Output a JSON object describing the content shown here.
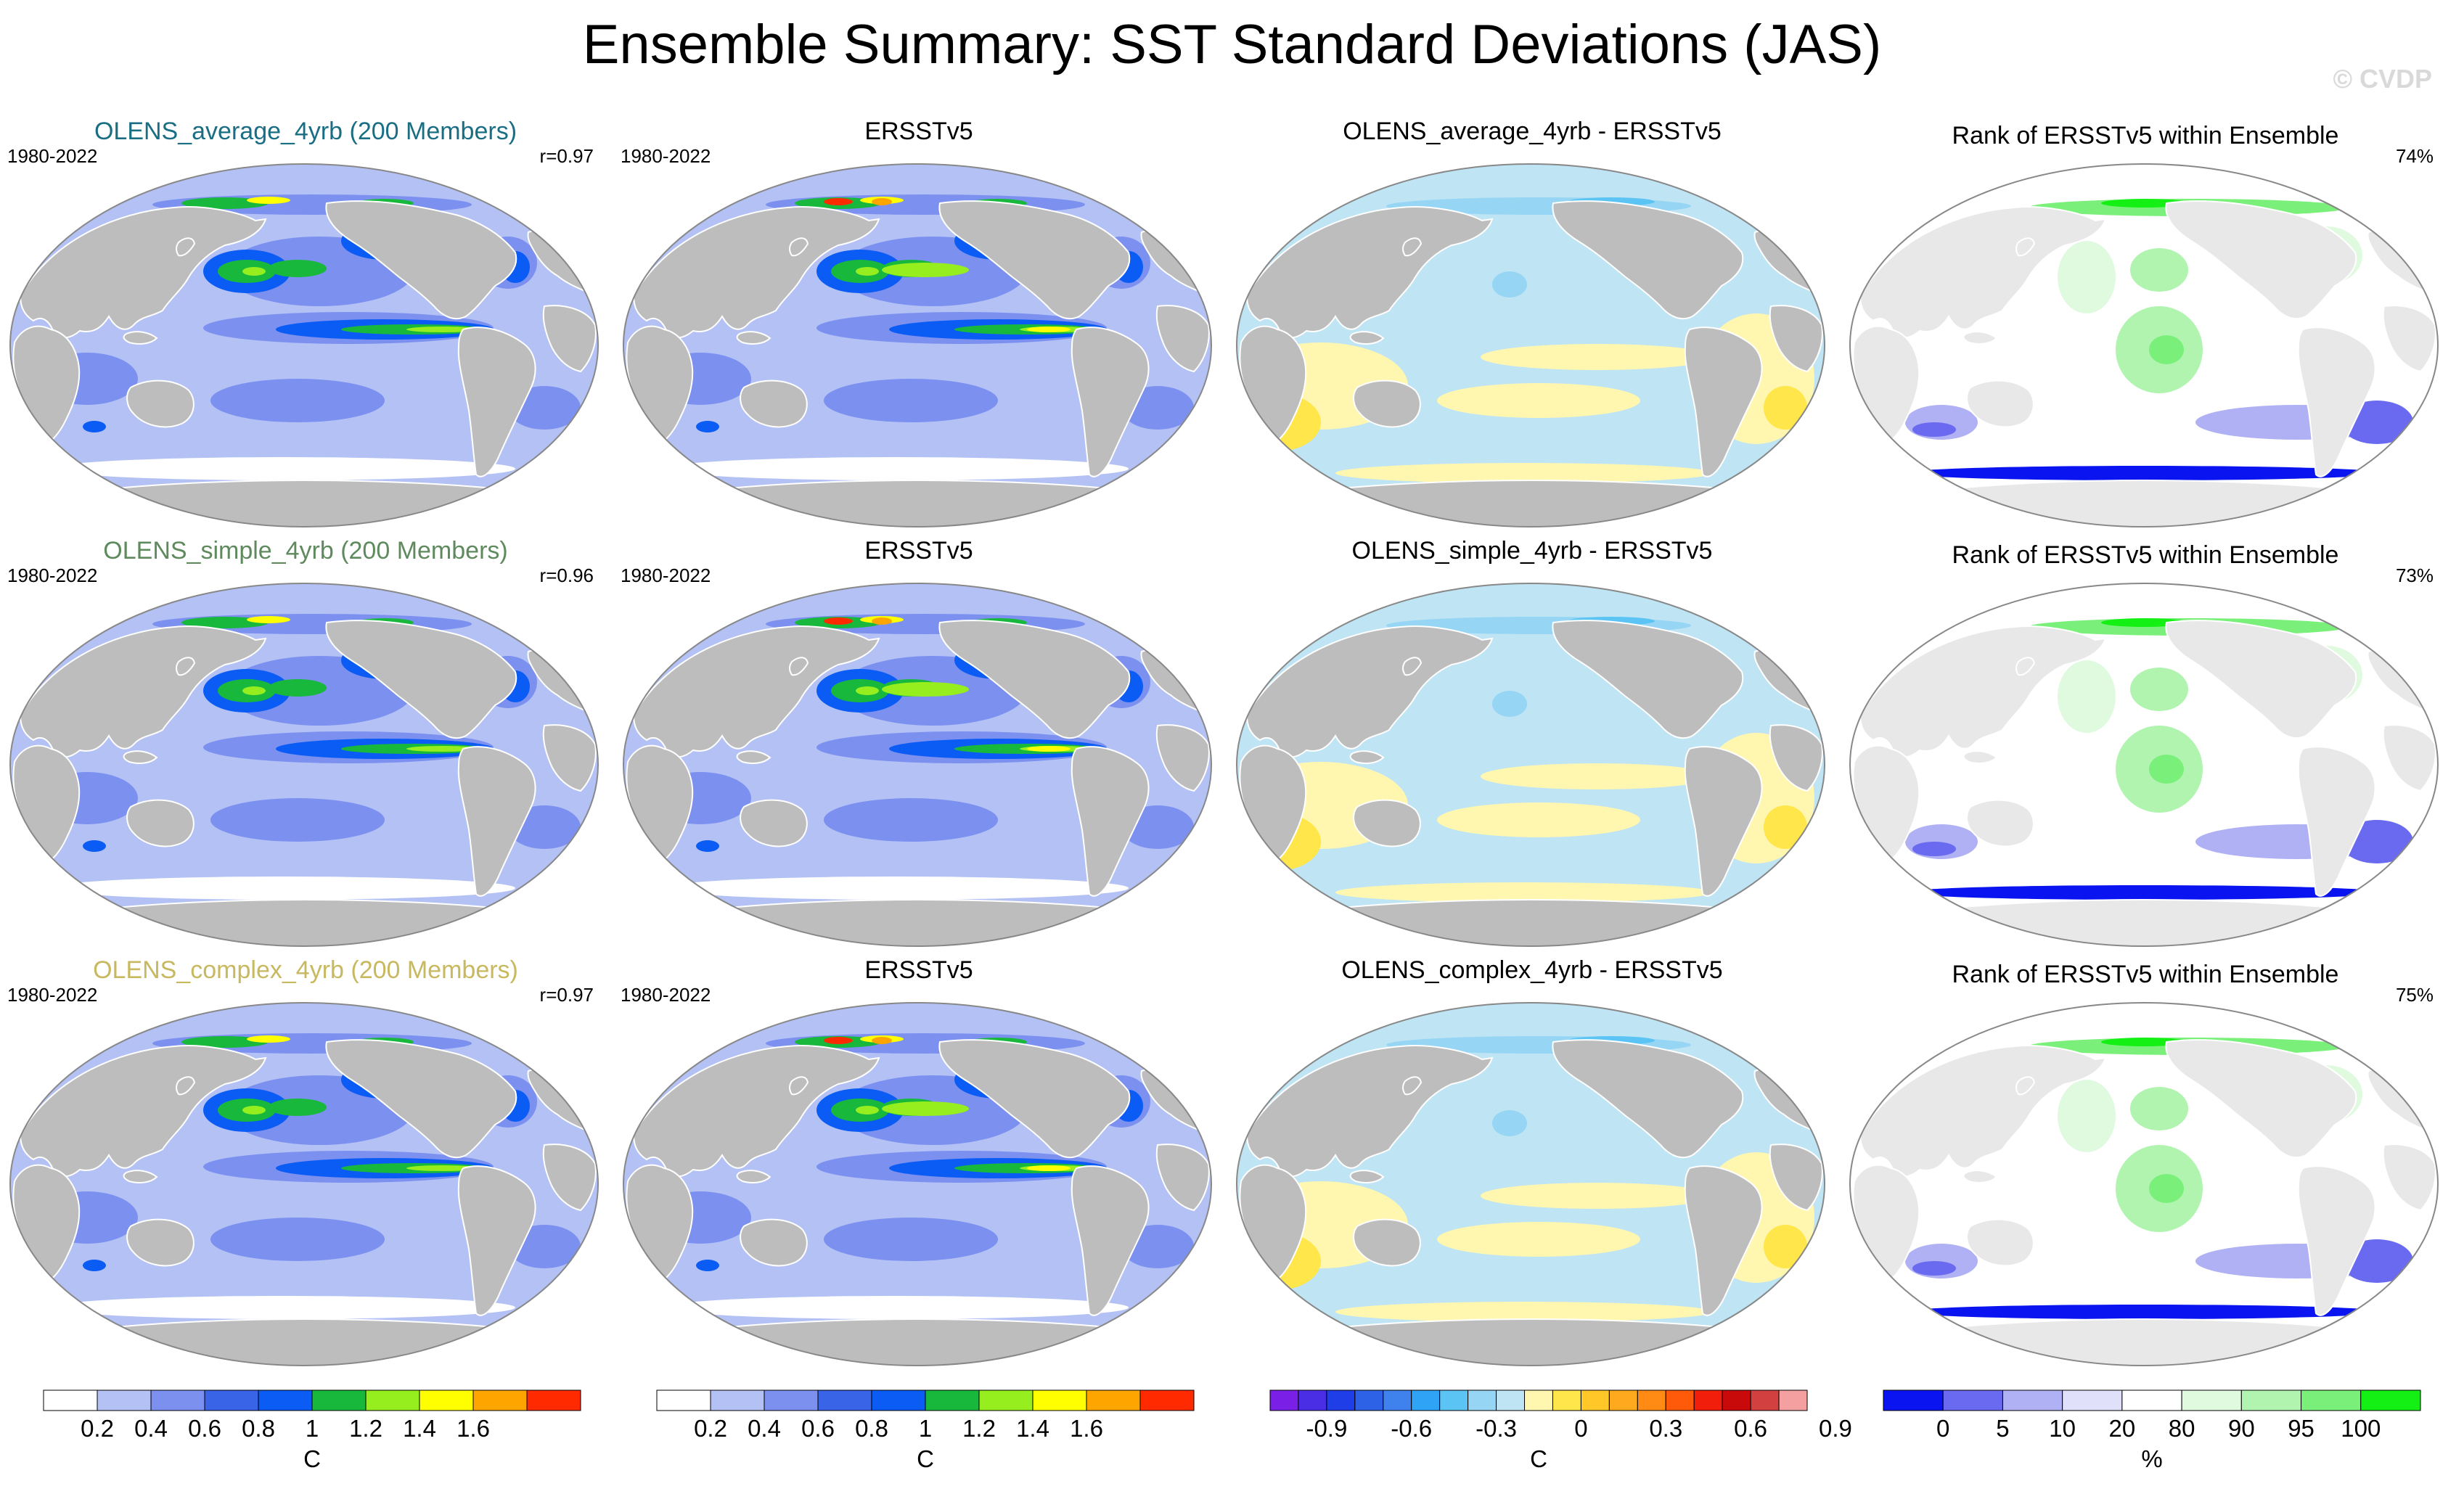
{
  "title": "Ensemble Summary: SST Standard Deviations (JAS)",
  "watermark": "© CVDP",
  "rows": [
    {
      "ensemble": {
        "title": "OLENS_average_4yrb (200 Members)",
        "title_color": "#1a6e84",
        "years": "1980-2022",
        "corr": "r=0.97"
      },
      "obs": {
        "title": "ERSSTv5",
        "years": "1980-2022"
      },
      "diff": {
        "title": "OLENS_average_4yrb - ERSSTv5"
      },
      "rank": {
        "title": "Rank of ERSSTv5 within Ensemble",
        "pct": "74%"
      }
    },
    {
      "ensemble": {
        "title": "OLENS_simple_4yrb (200 Members)",
        "title_color": "#5e8a5e",
        "years": "1980-2022",
        "corr": "r=0.96"
      },
      "obs": {
        "title": "ERSSTv5",
        "years": "1980-2022"
      },
      "diff": {
        "title": "OLENS_simple_4yrb - ERSSTv5"
      },
      "rank": {
        "title": "Rank of ERSSTv5 within Ensemble",
        "pct": "73%"
      }
    },
    {
      "ensemble": {
        "title": "OLENS_complex_4yrb (200 Members)",
        "title_color": "#c8b860",
        "years": "1980-2022",
        "corr": "r=0.97"
      },
      "obs": {
        "title": "ERSSTv5",
        "years": "1980-2022"
      },
      "diff": {
        "title": "OLENS_complex_4yrb - ERSSTv5"
      },
      "rank": {
        "title": "Rank of ERSSTv5 within Ensemble",
        "pct": "75%"
      }
    }
  ],
  "colorbars": [
    {
      "name": "sst-std-colorbar-ensemble",
      "colors": [
        "#ffffff",
        "#b3c1f5",
        "#7c90ef",
        "#3a64e8",
        "#0a5cf4",
        "#17b83c",
        "#96ee1e",
        "#ffff00",
        "#ffa500",
        "#ff2a00"
      ],
      "ticks": [
        "0.2",
        "0.4",
        "0.6",
        "0.8",
        "1",
        "1.2",
        "1.4",
        "1.6"
      ],
      "unit": "C"
    },
    {
      "name": "sst-std-colorbar-obs",
      "colors": [
        "#ffffff",
        "#b3c1f5",
        "#7c90ef",
        "#3a64e8",
        "#0a5cf4",
        "#17b83c",
        "#96ee1e",
        "#ffff00",
        "#ffa500",
        "#ff2a00"
      ],
      "ticks": [
        "0.2",
        "0.4",
        "0.6",
        "0.8",
        "1",
        "1.2",
        "1.4",
        "1.6"
      ],
      "unit": "C"
    },
    {
      "name": "sst-diff-colorbar",
      "colors": [
        "#7a20e6",
        "#4a2ee6",
        "#1f3ee8",
        "#2e62e6",
        "#3f82ee",
        "#2fa4f6",
        "#5cc4f4",
        "#96d6f4",
        "#bfe4f4",
        "#fff7b0",
        "#ffe64a",
        "#ffc828",
        "#ffaa1e",
        "#ff8a14",
        "#ff5a0a",
        "#f01e0a",
        "#c80a0a",
        "#d24040",
        "#f4a0a0"
      ],
      "ticks": [
        "-0.9",
        "-0.6",
        "-0.3",
        "0",
        "0.3",
        "0.6",
        "0.9"
      ],
      "unit": "C"
    },
    {
      "name": "rank-colorbar",
      "colors": [
        "#0a14f0",
        "#6a6af0",
        "#b0b0f4",
        "#e0e0fa",
        "#ffffff",
        "#e0fae0",
        "#b0f4b0",
        "#7af07a",
        "#14f014"
      ],
      "ticks": [
        "0",
        "5",
        "10",
        "20",
        "80",
        "90",
        "95",
        "100"
      ],
      "unit": "%"
    }
  ]
}
